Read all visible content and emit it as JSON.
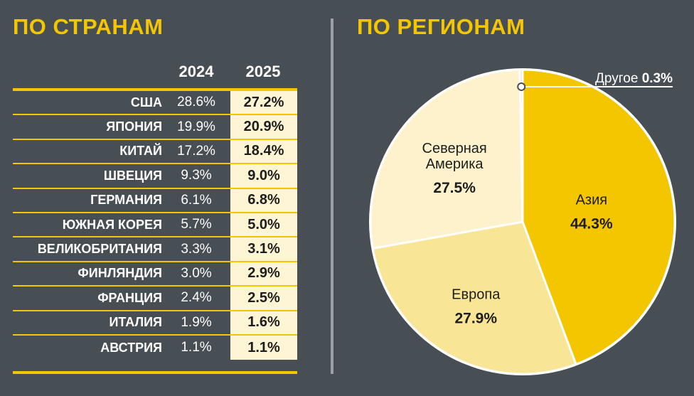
{
  "left": {
    "title": "ПО СТРАНАМ",
    "headers": [
      "2024",
      "2025"
    ]
  },
  "right": {
    "title": "ПО РЕГИОНАМ"
  },
  "colors": {
    "background": "#474e54",
    "accent": "#f4c600",
    "divider": "#9aa0a5",
    "asia": "#f4c600",
    "europe": "#f9e596",
    "north_america": "#fdf2cc",
    "other": "#d8d8d8"
  },
  "chart_data": [
    {
      "type": "table",
      "title": "ПО СТРАНАМ",
      "columns": [
        "",
        "2024",
        "2025"
      ],
      "rows": [
        {
          "country": "США",
          "v2024": "28.6%",
          "v2025": "27.2%"
        },
        {
          "country": "ЯПОНИЯ",
          "v2024": "19.9%",
          "v2025": "20.9%"
        },
        {
          "country": "КИТАЙ",
          "v2024": "17.2%",
          "v2025": "18.4%"
        },
        {
          "country": "ШВЕЦИЯ",
          "v2024": "9.3%",
          "v2025": "9.0%"
        },
        {
          "country": "ГЕРМАНИЯ",
          "v2024": "6.1%",
          "v2025": "6.8%"
        },
        {
          "country": "ЮЖНАЯ КОРЕЯ",
          "v2024": "5.7%",
          "v2025": "5.0%"
        },
        {
          "country": "ВЕЛИКОБРИТАНИЯ",
          "v2024": "3.3%",
          "v2025": "3.1%"
        },
        {
          "country": "ФИНЛЯНДИЯ",
          "v2024": "3.0%",
          "v2025": "2.9%"
        },
        {
          "country": "ФРАНЦИЯ",
          "v2024": "2.4%",
          "v2025": "2.5%"
        },
        {
          "country": "ИТАЛИЯ",
          "v2024": "1.9%",
          "v2025": "1.6%"
        },
        {
          "country": "АВСТРИЯ",
          "v2024": "1.1%",
          "v2025": "1.1%"
        }
      ]
    },
    {
      "type": "pie",
      "title": "ПО РЕГИОНАМ",
      "slices": [
        {
          "name": "Азия",
          "value": 44.3,
          "label": "44.3%",
          "color": "#f4c600"
        },
        {
          "name": "Европа",
          "value": 27.9,
          "label": "27.9%",
          "color": "#f9e596"
        },
        {
          "name": "Северная Америка",
          "name_lines": [
            "Северная",
            "Америка"
          ],
          "value": 27.5,
          "label": "27.5%",
          "color": "#fdf2cc"
        },
        {
          "name": "Другое",
          "value": 0.3,
          "label": "0.3%",
          "color": "#d8d8d8"
        }
      ]
    }
  ]
}
